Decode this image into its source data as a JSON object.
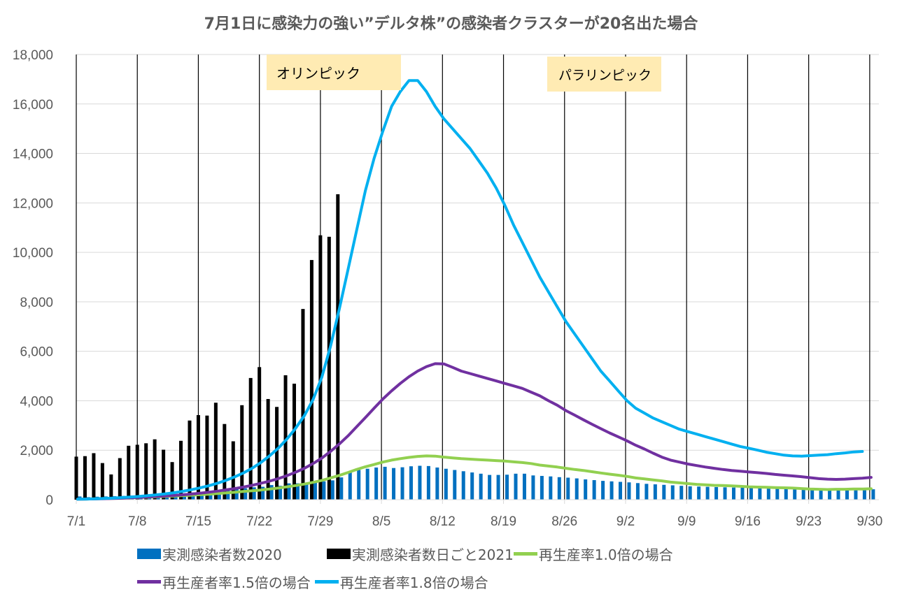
{
  "chart_data": {
    "type": "bar+line",
    "title": "7月1日に感染力の強い”デルタ株”の感染者クラスターが20名出た場合",
    "xlabel": "",
    "ylabel": "",
    "ylim": [
      0,
      18000
    ],
    "y_ticks": [
      "0",
      "2,000",
      "4,000",
      "6,000",
      "8,000",
      "10,000",
      "12,000",
      "14,000",
      "16,000",
      "18,000"
    ],
    "y_tick_values": [
      0,
      2000,
      4000,
      6000,
      8000,
      10000,
      12000,
      14000,
      16000,
      18000
    ],
    "x_ticks": [
      "7/1",
      "7/8",
      "7/15",
      "7/22",
      "7/29",
      "8/5",
      "8/12",
      "8/19",
      "8/26",
      "9/2",
      "9/9",
      "9/16",
      "9/23",
      "9/30"
    ],
    "x_tick_day_index": [
      0,
      7,
      14,
      21,
      28,
      35,
      42,
      49,
      56,
      63,
      70,
      77,
      84,
      91
    ],
    "day_count": 92,
    "grid": "horizontal",
    "vertical_week_lines": true,
    "legend_position": "bottom",
    "annotations": [
      {
        "text": "オリンピック",
        "start_day": 23,
        "end_day": 39,
        "color": "#FFEBB3"
      },
      {
        "text": "パラリンピック",
        "start_day": 55,
        "end_day": 67,
        "color": "#FFEBB3"
      }
    ],
    "series": [
      {
        "name": "実測感染者数2020",
        "kind": "bar",
        "color": "#0070C0",
        "start_day": 0,
        "values": [
          130,
          100,
          120,
          130,
          140,
          150,
          170,
          160,
          180,
          190,
          210,
          230,
          260,
          290,
          300,
          330,
          380,
          420,
          440,
          460,
          500,
          520,
          590,
          560,
          660,
          660,
          660,
          700,
          740,
          780,
          900,
          1100,
          1200,
          1250,
          1300,
          1330,
          1280,
          1310,
          1350,
          1370,
          1360,
          1300,
          1250,
          1200,
          1150,
          1100,
          1050,
          1000,
          1000,
          1010,
          1050,
          1050,
          980,
          960,
          940,
          910,
          890,
          860,
          820,
          790,
          760,
          740,
          720,
          700,
          670,
          640,
          620,
          600,
          580,
          560,
          540,
          530,
          520,
          510,
          500,
          490,
          480,
          470,
          460,
          450,
          440,
          430,
          420,
          410,
          400,
          400,
          390,
          390,
          380,
          380,
          380,
          420
        ]
      },
      {
        "name": "実測感染者数日ごと2021",
        "kind": "bar",
        "color": "#000000",
        "start_day": 0,
        "values": [
          1740,
          1760,
          1880,
          1480,
          1020,
          1680,
          2180,
          2220,
          2280,
          2440,
          2020,
          1520,
          2380,
          3200,
          3420,
          3400,
          3920,
          3060,
          2360,
          3820,
          4920,
          5360,
          4070,
          3750,
          5030,
          4690,
          7710,
          9690,
          10690,
          10630,
          12350
        ]
      },
      {
        "name": "再生産率1.0倍の場合",
        "kind": "line",
        "color": "#92D050",
        "start_day": 0,
        "values": [
          20,
          25,
          35,
          45,
          55,
          65,
          75,
          90,
          100,
          115,
          130,
          145,
          160,
          180,
          200,
          220,
          245,
          270,
          300,
          330,
          360,
          390,
          430,
          470,
          520,
          570,
          630,
          700,
          780,
          880,
          980,
          1100,
          1220,
          1330,
          1420,
          1520,
          1600,
          1660,
          1710,
          1750,
          1770,
          1760,
          1720,
          1690,
          1660,
          1640,
          1620,
          1600,
          1580,
          1560,
          1530,
          1500,
          1460,
          1400,
          1360,
          1320,
          1270,
          1220,
          1180,
          1130,
          1080,
          1030,
          990,
          940,
          880,
          840,
          800,
          760,
          710,
          680,
          650,
          620,
          600,
          580,
          570,
          560,
          540,
          520,
          510,
          500,
          490,
          480,
          470,
          450,
          430,
          420,
          410,
          420,
          420,
          430,
          430,
          440
        ]
      },
      {
        "name": "再生産者率1.5倍の場合",
        "kind": "line",
        "color": "#7030A0",
        "start_day": 0,
        "values": [
          20,
          25,
          30,
          40,
          50,
          60,
          75,
          90,
          110,
          130,
          150,
          170,
          195,
          225,
          260,
          300,
          345,
          395,
          450,
          510,
          580,
          660,
          750,
          850,
          970,
          1110,
          1270,
          1460,
          1680,
          1950,
          2250,
          2580,
          2950,
          3320,
          3700,
          4070,
          4400,
          4700,
          4970,
          5200,
          5380,
          5500,
          5490,
          5350,
          5200,
          5100,
          5000,
          4900,
          4800,
          4700,
          4600,
          4500,
          4350,
          4200,
          4000,
          3820,
          3600,
          3420,
          3230,
          3050,
          2870,
          2700,
          2540,
          2380,
          2200,
          2050,
          1880,
          1720,
          1600,
          1520,
          1440,
          1380,
          1320,
          1270,
          1220,
          1180,
          1150,
          1120,
          1090,
          1060,
          1020,
          990,
          960,
          930,
          890,
          850,
          830,
          820,
          830,
          850,
          870,
          900
        ]
      },
      {
        "name": "再生産者率1.8倍の場合",
        "kind": "line",
        "color": "#00B0F0",
        "start_day": 0,
        "values": [
          20,
          25,
          35,
          50,
          65,
          85,
          105,
          130,
          160,
          195,
          235,
          280,
          335,
          400,
          475,
          560,
          660,
          780,
          920,
          1080,
          1270,
          1500,
          1770,
          2080,
          2450,
          2890,
          3400,
          4050,
          4950,
          6200,
          7700,
          9300,
          10900,
          12500,
          13800,
          14900,
          15900,
          16500,
          16950,
          16950,
          16500,
          15900,
          15400,
          15000,
          14600,
          14200,
          13700,
          13200,
          12600,
          11900,
          11100,
          10400,
          9700,
          9000,
          8400,
          7800,
          7200,
          6700,
          6200,
          5700,
          5200,
          4800,
          4400,
          4000,
          3700,
          3500,
          3300,
          3150,
          3000,
          2850,
          2750,
          2650,
          2550,
          2450,
          2350,
          2250,
          2150,
          2080,
          2000,
          1920,
          1860,
          1800,
          1770,
          1760,
          1780,
          1800,
          1820,
          1860,
          1890,
          1930,
          1950
        ]
      }
    ]
  },
  "legend": {
    "items": [
      {
        "label": "実測感染者数2020",
        "color": "#0070C0",
        "kind": "box"
      },
      {
        "label": "実測感染者数日ごと2021",
        "color": "#000000",
        "kind": "box"
      },
      {
        "label": "再生産率1.0倍の場合",
        "color": "#92D050",
        "kind": "line"
      },
      {
        "label": "再生産者率1.5倍の場合",
        "color": "#7030A0",
        "kind": "line"
      },
      {
        "label": "再生産者率1.8倍の場合",
        "color": "#00B0F0",
        "kind": "line"
      }
    ]
  }
}
